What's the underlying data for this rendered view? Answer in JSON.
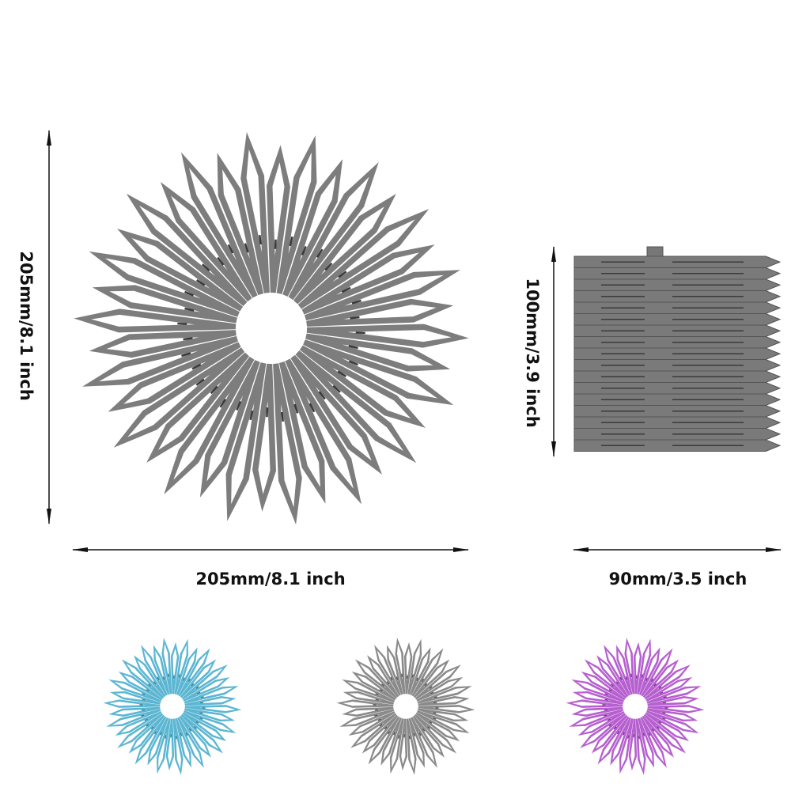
{
  "dimensions": {
    "large_height": "205mm/8.1 inch",
    "large_width": "205mm/8.1 inch",
    "folded_height": "100mm/3.9 inch",
    "folded_width": "90mm/3.5 inch"
  }
}
